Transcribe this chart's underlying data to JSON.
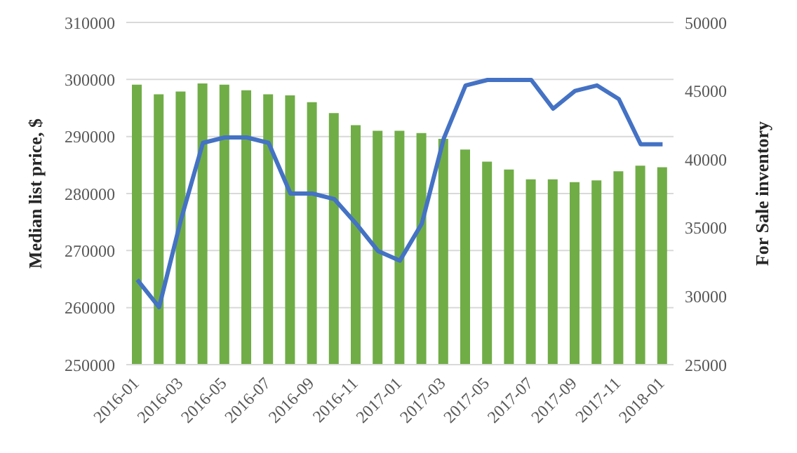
{
  "chart_data": {
    "type": "bar",
    "categories": [
      "2016-01",
      null,
      "2016-03",
      null,
      "2016-05",
      null,
      "2016-07",
      null,
      "2016-09",
      null,
      "2016-11",
      null,
      "2017-01",
      null,
      "2017-03",
      null,
      "2017-05",
      null,
      "2017-07",
      null,
      "2017-09",
      null,
      "2017-11",
      null,
      "2018-01"
    ],
    "series": [
      {
        "color": "#70ad47",
        "values": [
          299100,
          297400,
          297900,
          299300,
          299100,
          298100,
          297400,
          297200,
          296000,
          294100,
          292000,
          291000,
          291000,
          290600,
          289600,
          287700,
          285600,
          284200,
          282500,
          282500,
          282000,
          282300,
          283900,
          284900,
          284600
        ]
      },
      {
        "type": "line",
        "axis": "y2",
        "color": "#4472c4",
        "values": [
          31200,
          29200,
          35600,
          41200,
          41600,
          41600,
          41200,
          37500,
          37500,
          37100,
          35300,
          33300,
          32600,
          35300,
          41500,
          45400,
          45800,
          45800,
          45800,
          43700,
          45000,
          45400,
          44400,
          41100,
          41100
        ]
      }
    ],
    "ylabel": "Median list price, $",
    "y2label": "For Sale inventory",
    "ylim": [
      250000,
      310000
    ],
    "yticks": [
      250000,
      260000,
      270000,
      280000,
      290000,
      300000,
      310000
    ],
    "y2lim": [
      25000,
      50000
    ],
    "y2ticks": [
      25000,
      30000,
      35000,
      40000,
      45000,
      50000
    ],
    "grid": "y",
    "marker": "none",
    "line_style": "solid"
  }
}
